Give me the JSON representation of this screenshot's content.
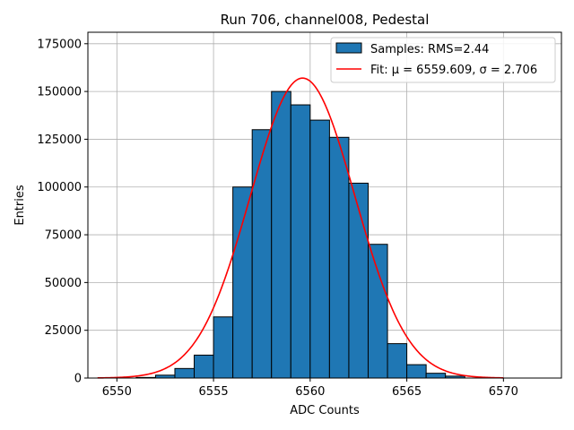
{
  "chart_data": {
    "type": "bar",
    "title": "Run 706, channel008, Pedestal",
    "xlabel": "ADC Counts",
    "ylabel": "Entries",
    "xlim": [
      6548.5,
      6573.0
    ],
    "ylim": [
      0,
      181000
    ],
    "xticks": [
      6550,
      6555,
      6560,
      6565,
      6570
    ],
    "yticks": [
      0,
      25000,
      50000,
      75000,
      100000,
      125000,
      150000,
      175000
    ],
    "grid": true,
    "legend_position": "top-right",
    "histogram": {
      "name": "Samples: RMS=2.44",
      "color": "#1f77b4",
      "bins": [
        {
          "x0": 6551,
          "x1": 6552,
          "value": 300
        },
        {
          "x0": 6552,
          "x1": 6553,
          "value": 1500
        },
        {
          "x0": 6553,
          "x1": 6554,
          "value": 5000
        },
        {
          "x0": 6554,
          "x1": 6555,
          "value": 12000
        },
        {
          "x0": 6555,
          "x1": 6556,
          "value": 32000
        },
        {
          "x0": 6556,
          "x1": 6557,
          "value": 100000
        },
        {
          "x0": 6557,
          "x1": 6558,
          "value": 130000
        },
        {
          "x0": 6558,
          "x1": 6559,
          "value": 150000
        },
        {
          "x0": 6559,
          "x1": 6560,
          "value": 143000
        },
        {
          "x0": 6560,
          "x1": 6561,
          "value": 135000
        },
        {
          "x0": 6561,
          "x1": 6562,
          "value": 126000
        },
        {
          "x0": 6562,
          "x1": 6563,
          "value": 102000
        },
        {
          "x0": 6563,
          "x1": 6564,
          "value": 70000
        },
        {
          "x0": 6564,
          "x1": 6565,
          "value": 18000
        },
        {
          "x0": 6565,
          "x1": 6566,
          "value": 7000
        },
        {
          "x0": 6566,
          "x1": 6567,
          "value": 2500
        },
        {
          "x0": 6567,
          "x1": 6568,
          "value": 1000
        }
      ]
    },
    "fit": {
      "name": "Fit: μ = 6559.609, σ = 2.706",
      "color": "#ff0000",
      "type": "gaussian",
      "mu": 6559.609,
      "sigma": 2.706,
      "amplitude": 157000,
      "x_range": [
        6549,
        6570
      ]
    }
  }
}
